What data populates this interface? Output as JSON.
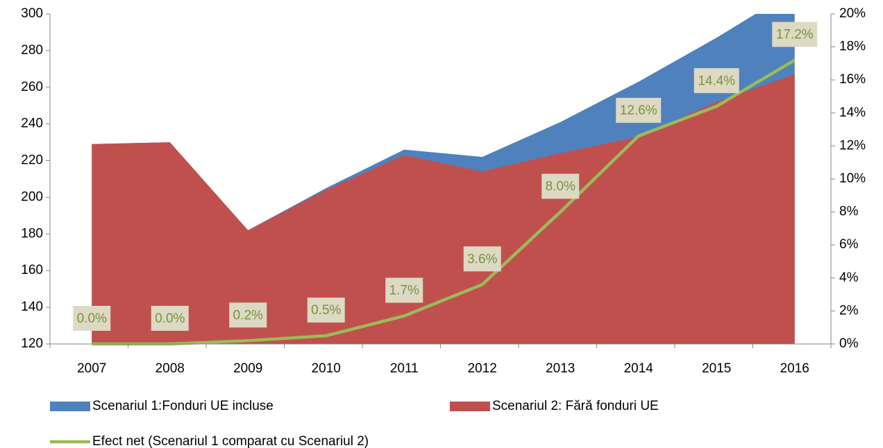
{
  "chart_data": {
    "type": "area",
    "categories": [
      "2007",
      "2008",
      "2009",
      "2010",
      "2011",
      "2012",
      "2013",
      "2014",
      "2015",
      "2016"
    ],
    "series": [
      {
        "name": "Scenariul 1:Fonduri UE incluse",
        "color": "#4f81bd",
        "values": [
          229,
          230,
          182,
          205,
          226,
          222,
          241,
          263,
          287,
          313
        ]
      },
      {
        "name": "Scenariul 2: Fără fonduri UE",
        "color": "#c0504d",
        "values": [
          229,
          230,
          182,
          204,
          223,
          214,
          224,
          233,
          252,
          267
        ]
      },
      {
        "name": "Efect net (Scenariul 1 comparat cu Scenariul 2)",
        "type": "line",
        "axis": "y2",
        "color": "#9bbb59",
        "values": [
          0.0,
          0.0,
          0.2,
          0.5,
          1.7,
          3.6,
          8.0,
          12.6,
          14.4,
          17.2
        ],
        "value_labels": [
          "0.0%",
          "0.0%",
          "0.2%",
          "0.5%",
          "1.7%",
          "3.6%",
          "8.0%",
          "12.6%",
          "14.4%",
          "17.2%"
        ]
      }
    ],
    "ylim": [
      120,
      300
    ],
    "yticks": [
      120,
      140,
      160,
      180,
      200,
      220,
      240,
      260,
      280,
      300
    ],
    "y2lim": [
      0,
      20
    ],
    "y2ticks": [
      {
        "value": 0,
        "label": "0%"
      },
      {
        "value": 2,
        "label": "2%"
      },
      {
        "value": 4,
        "label": "4%"
      },
      {
        "value": 6,
        "label": "6%"
      },
      {
        "value": 8,
        "label": "8%"
      },
      {
        "value": 10,
        "label": "10%"
      },
      {
        "value": 12,
        "label": "12%"
      },
      {
        "value": 14,
        "label": "14%"
      },
      {
        "value": 16,
        "label": "16%"
      },
      {
        "value": 18,
        "label": "18%"
      },
      {
        "value": 20,
        "label": "20%"
      }
    ],
    "grid": false
  }
}
